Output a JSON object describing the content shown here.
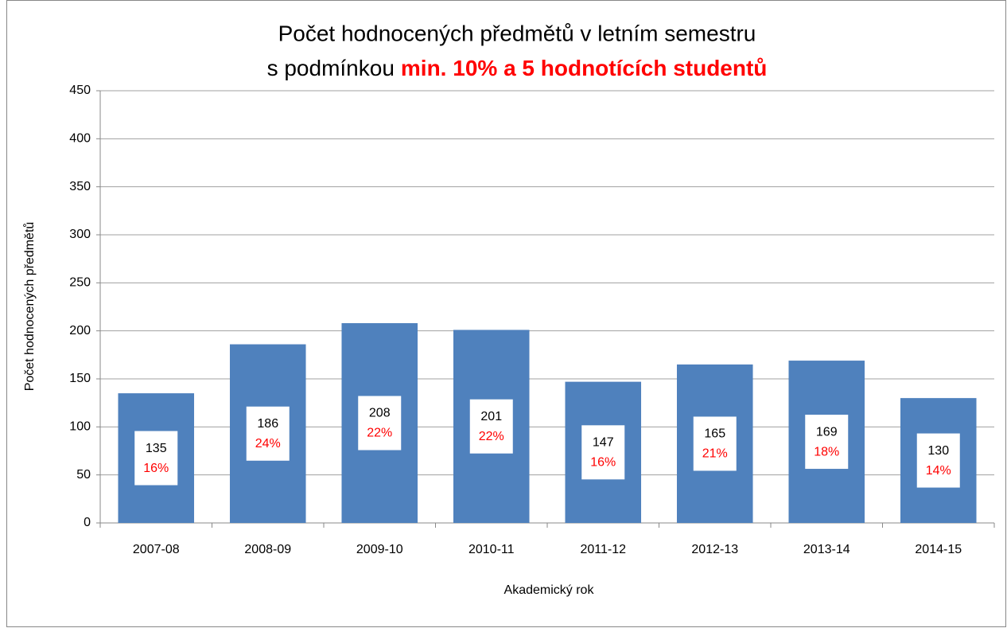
{
  "chart_data": {
    "type": "bar",
    "title": "Počet hodnocených předmětů v letním semestru",
    "subtitle": "s podmínkou",
    "subtitle_highlight": "min. 10% a 5 hodnotících studentů",
    "x_label": "Akademický rok",
    "y_label": "Počet hodnocených předmětů",
    "categories": [
      "2007-08",
      "2008-09",
      "2009-10",
      "2010-11",
      "2011-12",
      "2012-13",
      "2013-14",
      "2014-15"
    ],
    "values": [
      135,
      186,
      208,
      201,
      147,
      165,
      169,
      130
    ],
    "percent_labels": [
      "16%",
      "24%",
      "22%",
      "22%",
      "16%",
      "21%",
      "18%",
      "14%"
    ],
    "color": "#4f81bd",
    "ylim": [
      0,
      450
    ],
    "yticks": [
      0,
      50,
      100,
      150,
      200,
      250,
      300,
      350,
      400,
      450
    ],
    "grid": true
  }
}
